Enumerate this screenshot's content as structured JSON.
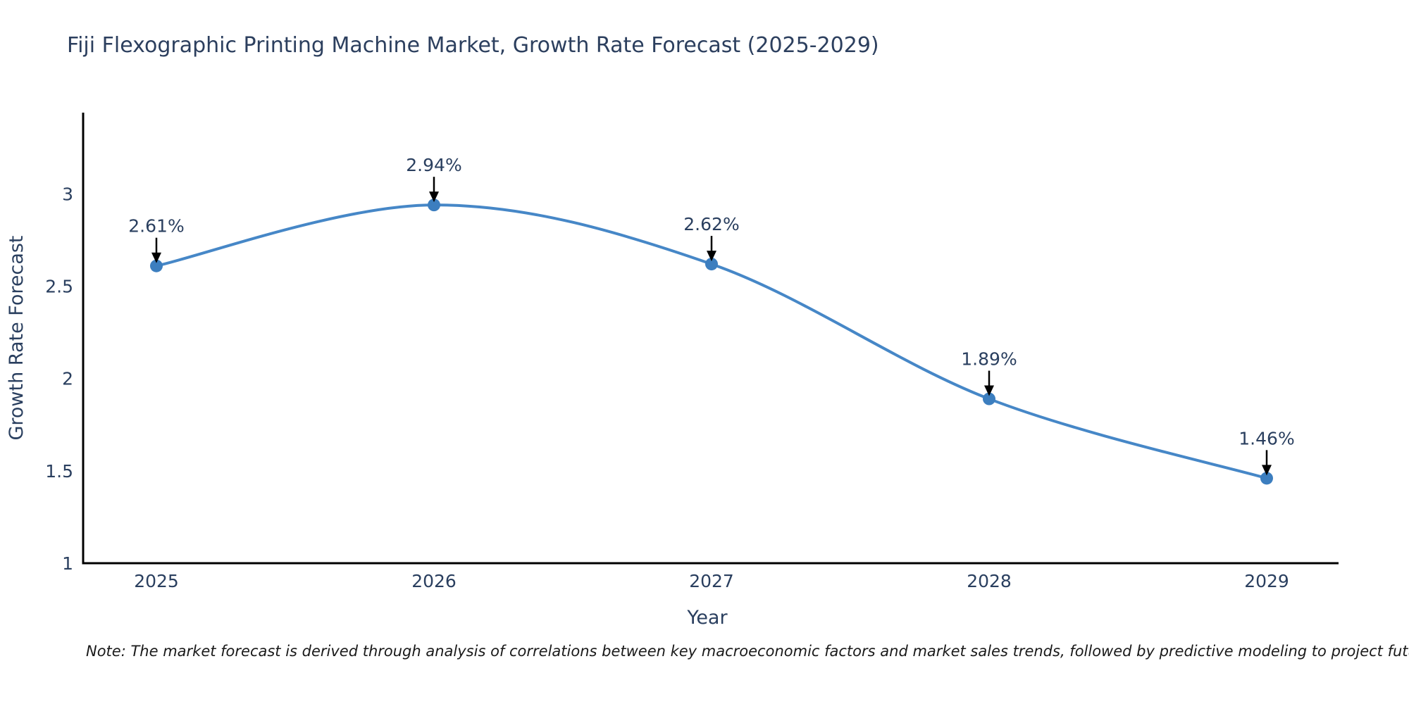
{
  "chart": {
    "title": "Fiji Flexographic Printing Machine Market, Growth Rate Forecast (2025-2029)"
  },
  "note": {
    "text": "Note: The market forecast is derived through analysis of correlations between key macroeconomic factors and market sales trends, followed by predictive modeling to project future sales"
  },
  "chart_data": {
    "type": "line",
    "line_shape": "spline",
    "x": [
      "2025",
      "2026",
      "2027",
      "2028",
      "2029"
    ],
    "series": [
      {
        "name": "Growth Rate Forecast",
        "values": [
          2.61,
          2.94,
          2.62,
          1.89,
          1.46
        ]
      }
    ],
    "point_labels": [
      "2.61%",
      "2.94%",
      "2.62%",
      "1.89%",
      "1.46%"
    ],
    "title": "Fiji Flexographic Printing Machine Market, Growth Rate Forecast (2025-2029)",
    "xlabel": "Year",
    "ylabel": "Growth Rate Forecast",
    "ylim": [
      1,
      3.44
    ],
    "yticks": [
      1,
      1.5,
      2,
      2.5,
      3
    ],
    "ytick_labels": [
      "1",
      "1.5",
      "2",
      "2.5",
      "3"
    ],
    "grid": false,
    "legend_position": "none",
    "annotations_have_arrows": true
  },
  "colors": {
    "line": "#4687c7",
    "marker": "#3c7ebf",
    "axis_line": "#000000",
    "arrow": "#000000",
    "title_text": "#2c3f5e",
    "tick_text": "#2a3f5f",
    "note_text": "#1a1a1a"
  }
}
